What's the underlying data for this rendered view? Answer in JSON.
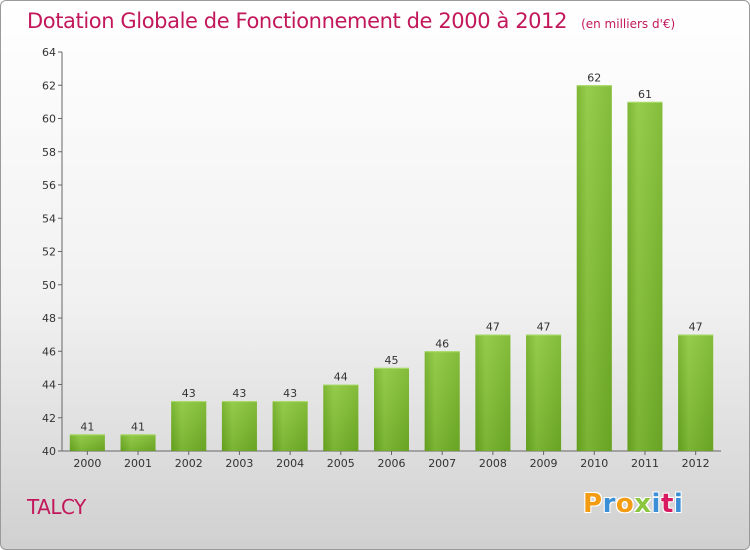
{
  "header": {
    "title": "Dotation Globale de Fonctionnement de 2000 à 2012",
    "subtitle": "(en milliers d'€)"
  },
  "footer": {
    "commune": "TALCY",
    "logo_letters": [
      "P",
      "r",
      "o",
      "x",
      "i",
      "t",
      "i"
    ],
    "logo_colors": [
      "#f39c12",
      "#3a8fd6",
      "#f39c12",
      "#8cc63f",
      "#3a8fd6",
      "#d81b60",
      "#3a8fd6"
    ]
  },
  "chart_data": {
    "type": "bar",
    "title": "Dotation Globale de Fonctionnement de 2000 à 2012",
    "subtitle": "(en milliers d'€)",
    "categories": [
      "2000",
      "2001",
      "2002",
      "2003",
      "2004",
      "2005",
      "2006",
      "2007",
      "2008",
      "2009",
      "2010",
      "2011",
      "2012"
    ],
    "values": [
      41,
      41,
      43,
      43,
      43,
      44,
      45,
      46,
      47,
      47,
      62,
      61,
      47
    ],
    "ylim": [
      40,
      64
    ],
    "yticks": [
      "40",
      "42",
      "44",
      "46",
      "48",
      "50",
      "52",
      "54",
      "56",
      "58",
      "60",
      "62",
      "64"
    ],
    "grid": false,
    "bar_color": "#7cbd2c"
  }
}
